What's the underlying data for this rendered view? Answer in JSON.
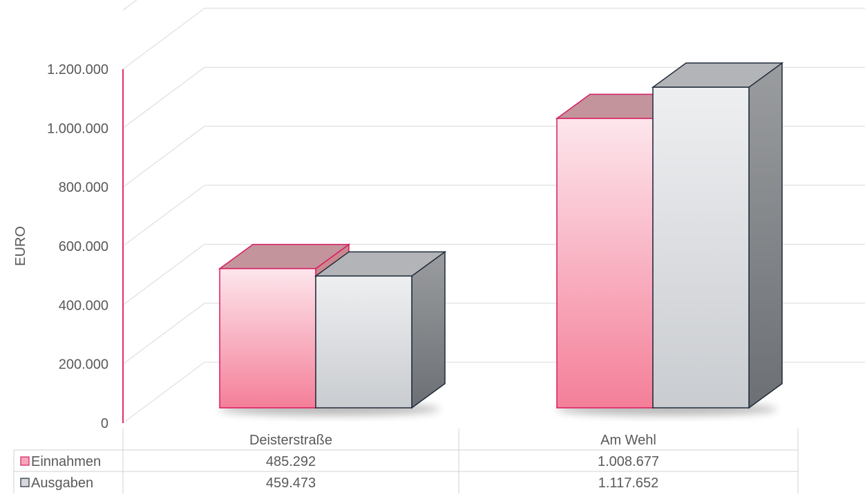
{
  "chart_data": {
    "type": "bar",
    "three_d": true,
    "ylabel": "EURO",
    "ylim": [
      0,
      1200000
    ],
    "yticks": [
      0,
      200000,
      400000,
      600000,
      800000,
      1000000,
      1200000
    ],
    "ytick_labels": [
      "0",
      "200.000",
      "400.000",
      "600.000",
      "800.000",
      "1.000.000",
      "1.200.000"
    ],
    "grid": true,
    "categories": [
      "Deisterstraße",
      "Am Wehl"
    ],
    "series": [
      {
        "name": "Einnahmen",
        "values": [
          485292,
          1008677
        ],
        "value_labels": [
          "485.292",
          "1.008.677"
        ],
        "color": "#f27a96",
        "edge": "#d81b60"
      },
      {
        "name": "Ausgaben",
        "values": [
          459473,
          1117652
        ],
        "value_labels": [
          "459.473",
          "1.117.652"
        ],
        "color": "#cfd2d6",
        "edge": "#1f2a3a"
      }
    ],
    "legend": "data-table-below"
  }
}
